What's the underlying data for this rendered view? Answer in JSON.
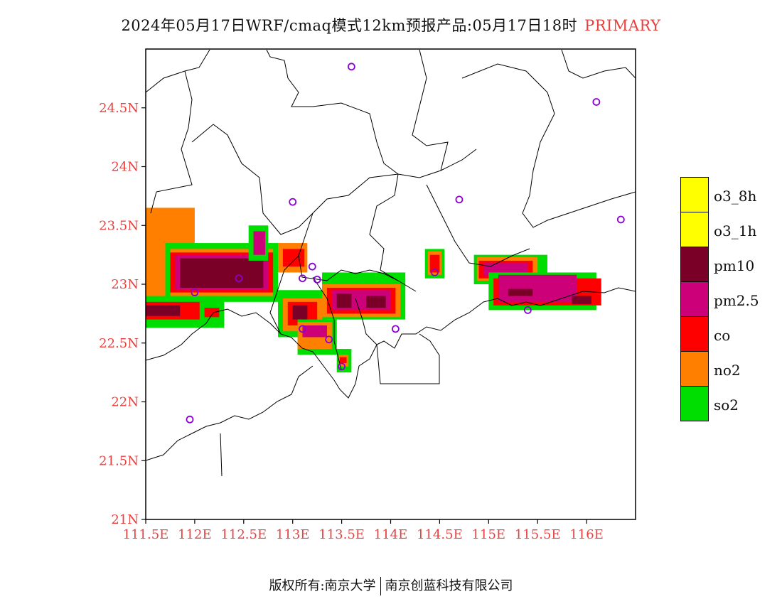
{
  "title": {
    "main": "2024年05月17日WRF/cmaq模式12km预报产品:05月17日18时",
    "pollutant": "PRIMARY"
  },
  "axes": {
    "lon_ticks": [
      "111.5E",
      "112E",
      "112.5E",
      "113E",
      "113.5E",
      "114E",
      "114.5E",
      "115E",
      "115.5E",
      "116E"
    ],
    "lat_ticks": [
      "24.5N",
      "24N",
      "23.5N",
      "23N",
      "22.5N",
      "22N",
      "21.5N",
      "21N"
    ]
  },
  "map_data": {
    "lon_range": [
      111.5,
      116.5
    ],
    "lat_range": [
      21.0,
      25.0
    ],
    "lon_tick_values": [
      111.5,
      112.0,
      112.5,
      113.0,
      113.5,
      114.0,
      114.5,
      115.0,
      115.5,
      116.0
    ],
    "lat_tick_values": [
      24.5,
      24.0,
      23.5,
      23.0,
      22.5,
      22.0,
      21.5,
      21.0
    ],
    "stations": [
      [
        113.6,
        24.85
      ],
      [
        116.1,
        24.55
      ],
      [
        113.0,
        23.7
      ],
      [
        114.7,
        23.72
      ],
      [
        116.35,
        23.55
      ],
      [
        112.45,
        23.05
      ],
      [
        113.1,
        23.05
      ],
      [
        113.2,
        23.15
      ],
      [
        113.25,
        23.04
      ],
      [
        114.45,
        23.1
      ],
      [
        112.0,
        22.93
      ],
      [
        113.1,
        22.62
      ],
      [
        113.37,
        22.53
      ],
      [
        114.05,
        22.62
      ],
      [
        115.4,
        22.78
      ],
      [
        113.5,
        22.3
      ],
      [
        111.95,
        21.85
      ]
    ],
    "pollution_areas": [
      {
        "type": "so2",
        "lon": [
          111.5,
          112.05
        ],
        "lat": [
          22.63,
          23.1
        ]
      },
      {
        "type": "no2",
        "lon": [
          111.5,
          112.0
        ],
        "lat": [
          22.7,
          23.65
        ]
      },
      {
        "type": "so2",
        "lon": [
          111.7,
          112.85
        ],
        "lat": [
          22.85,
          23.35
        ]
      },
      {
        "type": "no2",
        "lon": [
          111.75,
          112.8
        ],
        "lat": [
          22.9,
          23.3
        ]
      },
      {
        "type": "co",
        "lon": [
          111.75,
          112.8
        ],
        "lat": [
          22.93,
          23.27
        ]
      },
      {
        "type": "pm2.5",
        "lon": [
          111.8,
          112.75
        ],
        "lat": [
          22.95,
          23.25
        ]
      },
      {
        "type": "pm10",
        "lon": [
          111.85,
          112.7
        ],
        "lat": [
          22.97,
          23.22
        ]
      },
      {
        "type": "so2",
        "lon": [
          112.55,
          112.75
        ],
        "lat": [
          23.2,
          23.5
        ]
      },
      {
        "type": "pm2.5",
        "lon": [
          112.6,
          112.72
        ],
        "lat": [
          23.25,
          23.45
        ]
      },
      {
        "type": "so2",
        "lon": [
          111.5,
          112.3
        ],
        "lat": [
          22.63,
          22.9
        ]
      },
      {
        "type": "co",
        "lon": [
          111.5,
          112.1
        ],
        "lat": [
          22.7,
          22.85
        ]
      },
      {
        "type": "pm10",
        "lon": [
          111.5,
          111.85
        ],
        "lat": [
          22.73,
          22.82
        ]
      },
      {
        "type": "so2",
        "lon": [
          112.05,
          112.3
        ],
        "lat": [
          22.65,
          22.85
        ]
      },
      {
        "type": "co",
        "lon": [
          112.1,
          112.25
        ],
        "lat": [
          22.72,
          22.8
        ]
      },
      {
        "type": "no2",
        "lon": [
          112.85,
          113.15
        ],
        "lat": [
          23.1,
          23.35
        ]
      },
      {
        "type": "co",
        "lon": [
          112.9,
          113.12
        ],
        "lat": [
          23.15,
          23.3
        ]
      },
      {
        "type": "so2",
        "lon": [
          112.85,
          113.35
        ],
        "lat": [
          22.55,
          22.95
        ]
      },
      {
        "type": "no2",
        "lon": [
          112.9,
          113.3
        ],
        "lat": [
          22.6,
          22.88
        ]
      },
      {
        "type": "co",
        "lon": [
          112.95,
          113.25
        ],
        "lat": [
          22.65,
          22.85
        ]
      },
      {
        "type": "pm10",
        "lon": [
          113.0,
          113.15
        ],
        "lat": [
          22.7,
          22.82
        ]
      },
      {
        "type": "so2",
        "lon": [
          113.05,
          113.45
        ],
        "lat": [
          22.4,
          22.7
        ]
      },
      {
        "type": "no2",
        "lon": [
          113.05,
          113.4
        ],
        "lat": [
          22.45,
          22.68
        ]
      },
      {
        "type": "pm2.5",
        "lon": [
          113.1,
          113.35
        ],
        "lat": [
          22.55,
          22.65
        ]
      },
      {
        "type": "so2",
        "lon": [
          113.3,
          114.15
        ],
        "lat": [
          22.7,
          23.1
        ]
      },
      {
        "type": "no2",
        "lon": [
          113.3,
          114.1
        ],
        "lat": [
          22.72,
          23.0
        ]
      },
      {
        "type": "co",
        "lon": [
          113.35,
          114.05
        ],
        "lat": [
          22.75,
          22.97
        ]
      },
      {
        "type": "pm2.5",
        "lon": [
          113.4,
          114.0
        ],
        "lat": [
          22.78,
          22.95
        ]
      },
      {
        "type": "pm10",
        "lon": [
          113.45,
          113.6
        ],
        "lat": [
          22.8,
          22.92
        ]
      },
      {
        "type": "pm10",
        "lon": [
          113.75,
          113.95
        ],
        "lat": [
          22.8,
          22.9
        ]
      },
      {
        "type": "so2",
        "lon": [
          113.45,
          113.6
        ],
        "lat": [
          22.25,
          22.45
        ]
      },
      {
        "type": "no2",
        "lon": [
          113.47,
          113.57
        ],
        "lat": [
          22.3,
          22.4
        ]
      },
      {
        "type": "co",
        "lon": [
          113.48,
          113.55
        ],
        "lat": [
          22.33,
          22.38
        ]
      },
      {
        "type": "so2",
        "lon": [
          114.35,
          114.55
        ],
        "lat": [
          23.05,
          23.3
        ]
      },
      {
        "type": "no2",
        "lon": [
          114.38,
          114.52
        ],
        "lat": [
          23.08,
          23.28
        ]
      },
      {
        "type": "co",
        "lon": [
          114.4,
          114.5
        ],
        "lat": [
          23.1,
          23.25
        ]
      },
      {
        "type": "so2",
        "lon": [
          114.85,
          115.6
        ],
        "lat": [
          23.0,
          23.25
        ]
      },
      {
        "type": "no2",
        "lon": [
          114.88,
          115.5
        ],
        "lat": [
          23.03,
          23.23
        ]
      },
      {
        "type": "co",
        "lon": [
          114.9,
          115.45
        ],
        "lat": [
          23.05,
          23.2
        ]
      },
      {
        "type": "pm2.5",
        "lon": [
          114.95,
          115.4
        ],
        "lat": [
          23.07,
          23.18
        ]
      },
      {
        "type": "so2",
        "lon": [
          115.0,
          116.1
        ],
        "lat": [
          22.78,
          23.1
        ]
      },
      {
        "type": "co",
        "lon": [
          115.05,
          116.15
        ],
        "lat": [
          22.82,
          23.05
        ]
      },
      {
        "type": "pm2.5",
        "lon": [
          115.1,
          115.9
        ],
        "lat": [
          22.85,
          23.08
        ]
      },
      {
        "type": "pm10",
        "lon": [
          115.2,
          115.45
        ],
        "lat": [
          22.9,
          22.96
        ]
      },
      {
        "type": "pm10",
        "lon": [
          115.85,
          116.05
        ],
        "lat": [
          22.83,
          22.9
        ]
      }
    ]
  },
  "legend": [
    {
      "label": "o3_8h",
      "color": "#ffff00"
    },
    {
      "label": "o3_1h",
      "color": "#ffff00"
    },
    {
      "label": "pm10",
      "color": "#7a0027"
    },
    {
      "label": "pm2.5",
      "color": "#cc0078"
    },
    {
      "label": "co",
      "color": "#ff0000"
    },
    {
      "label": "no2",
      "color": "#ff7f00"
    },
    {
      "label": "so2",
      "color": "#00dd00"
    }
  ],
  "footer": {
    "left": "版权所有:南京大学",
    "right": "南京创蓝科技有限公司"
  }
}
